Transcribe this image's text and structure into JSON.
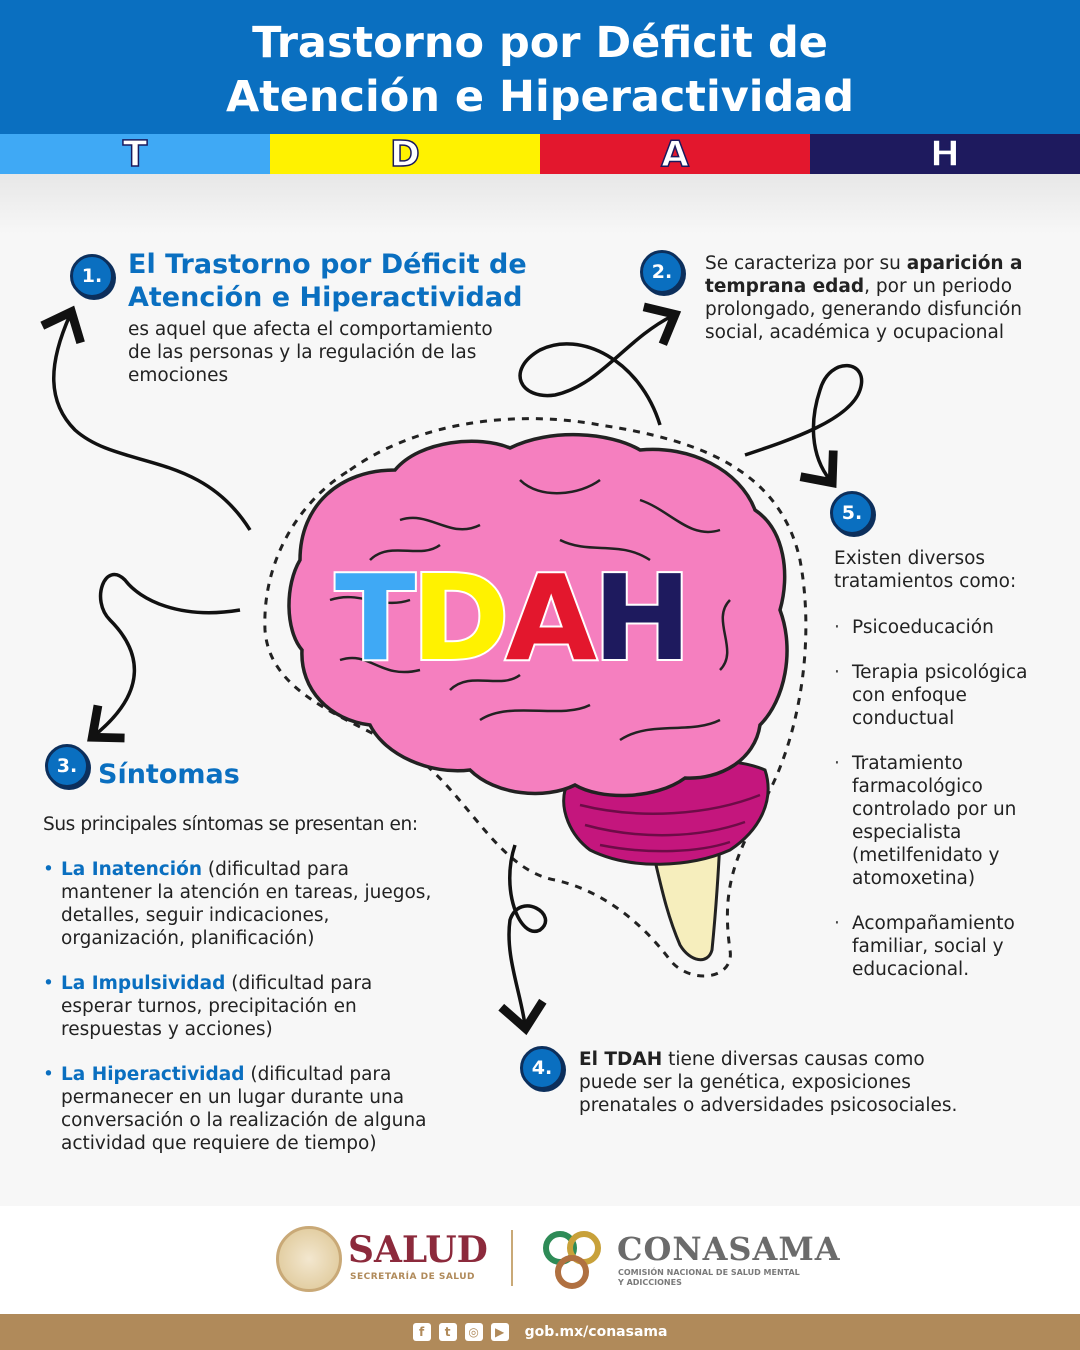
{
  "header": {
    "title_line1": "Trastorno por Déficit de",
    "title_line2": "Atención e Hiperactividad"
  },
  "letters": [
    {
      "letter": "T",
      "color": "#3fa9f5"
    },
    {
      "letter": "D",
      "color": "#fff200"
    },
    {
      "letter": "A",
      "color": "#e3172d"
    },
    {
      "letter": "H",
      "color": "#1e1a5e"
    }
  ],
  "brain": {
    "word": "TDAH"
  },
  "section1": {
    "number": "1.",
    "title_line1": "El Trastorno por Déficit de",
    "title_line2": "Atención e Hiperactividad",
    "text": "es aquel que afecta el comportamiento de las personas y la regulación de las emociones"
  },
  "section2": {
    "number": "2.",
    "text_pre": "Se caracteriza por su ",
    "text_bold": "aparición a temprana edad",
    "text_post": ", por un periodo prolongado, generando disfunción social, académica y ocupacional"
  },
  "section3": {
    "number": "3.",
    "title": "Síntomas",
    "intro": "Sus principales síntomas se presentan en:",
    "items": [
      {
        "label": "La Inatención",
        "desc": " (dificultad para mantener la atención en tareas, juegos, detalles, seguir indicaciones, organización, planificación)"
      },
      {
        "label": "La Impulsividad",
        "desc": " (dificultad para esperar turnos, precipitación en respuestas y acciones)"
      },
      {
        "label": "La Hiperactividad",
        "desc": " (dificultad para permanecer en un lugar durante una conversación o la realización de alguna actividad que requiere de tiempo)"
      }
    ]
  },
  "section4": {
    "number": "4.",
    "text_bold": "El TDAH",
    "text_post": " tiene diversas causas como puede ser la genética, exposiciones prenatales o adversidades psicosociales."
  },
  "section5": {
    "number": "5.",
    "intro": "Existen diversos tratamientos como:",
    "items": [
      "Psicoeducación",
      "Terapia psicológica con enfoque conductual",
      "Tratamiento farmacológico controlado por un especialista (metilfenidato y atomoxetina)",
      "Acompañamiento familiar, social y educacional."
    ]
  },
  "footer": {
    "salud": "SALUD",
    "salud_sub": "SECRETARÍA DE SALUD",
    "conasama": "CONASAMA",
    "conasama_sub1": "COMISIÓN NACIONAL DE SALUD MENTAL",
    "conasama_sub2": "Y ADICCIONES",
    "website": "gob.mx/conasama",
    "social_icons": [
      "facebook-icon",
      "twitter-icon",
      "instagram-icon",
      "youtube-icon"
    ],
    "salud_color": "#8c2a3c",
    "conasama_color": "#6b6b6b",
    "bar_color": "#b08a5a"
  }
}
